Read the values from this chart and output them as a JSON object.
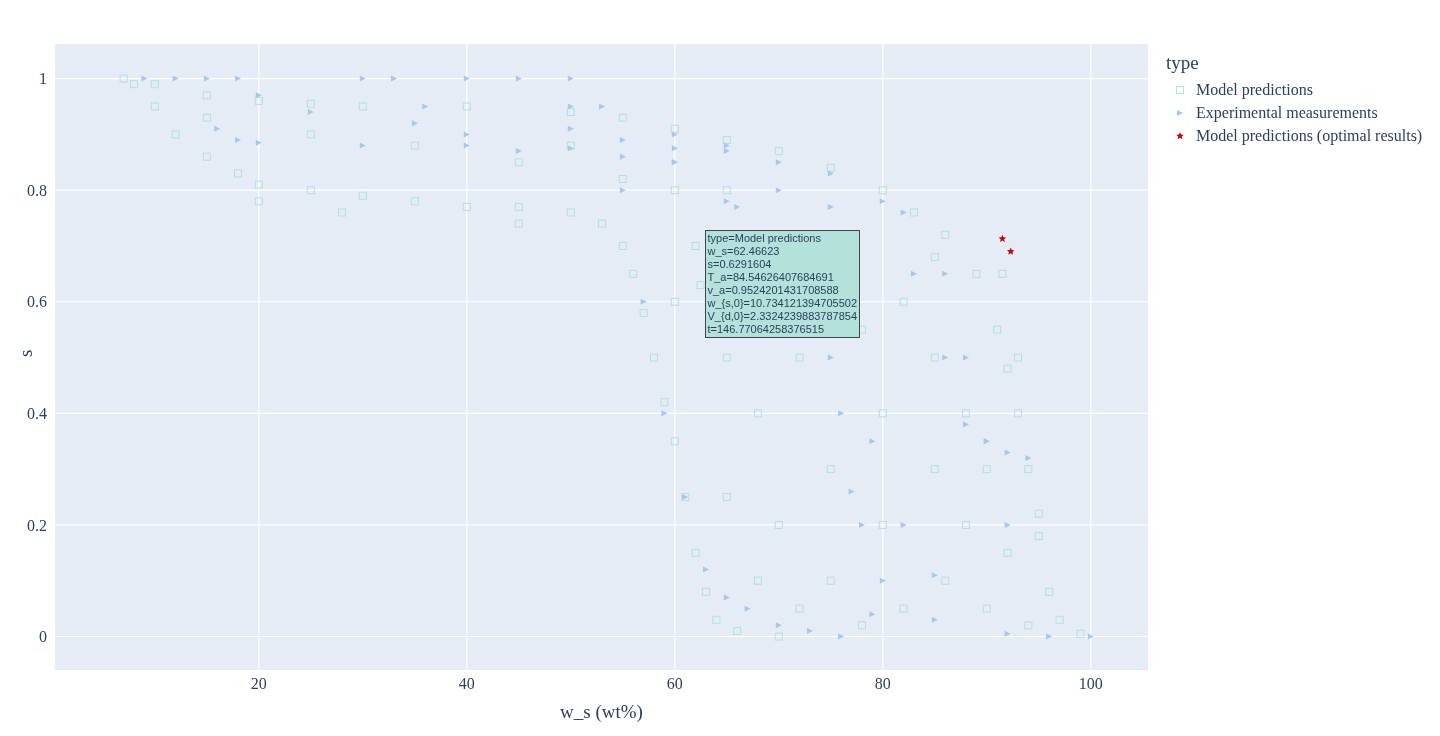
{
  "chart_data": {
    "type": "scatter",
    "xlabel": "w_s (wt%)",
    "ylabel": "s",
    "legend_title": "type",
    "xlim": [
      0.4,
      105.5
    ],
    "ylim": [
      -0.06,
      1.062
    ],
    "xticks": [
      20,
      40,
      60,
      80,
      100
    ],
    "yticks": [
      0,
      0.2,
      0.4,
      0.6,
      0.8,
      1
    ],
    "grid": true,
    "legend": "top right",
    "series": [
      {
        "name": "Model predictions",
        "color": "#b2e2da",
        "marker": "square",
        "x": [
          7,
          10,
          15,
          20,
          25,
          30,
          40,
          50,
          55,
          60,
          65,
          70,
          75,
          80,
          83,
          86,
          89,
          91,
          92,
          93,
          94,
          95,
          96,
          97,
          99,
          8,
          10,
          12,
          15,
          18,
          20,
          25,
          30,
          35,
          40,
          45,
          50,
          53,
          55,
          56,
          57,
          58,
          59,
          60,
          61,
          62,
          63,
          64,
          66,
          70,
          15,
          25,
          35,
          45,
          50,
          55,
          60,
          60,
          62,
          65,
          65,
          65,
          68,
          68,
          70,
          72,
          72,
          75,
          75,
          78,
          78,
          80,
          80,
          82,
          82,
          85,
          85,
          86,
          88,
          88,
          90,
          90,
          92,
          94,
          62.47,
          20,
          28,
          45,
          85,
          91.5,
          93,
          95
        ],
        "values": [
          1,
          0.99,
          0.97,
          0.96,
          0.955,
          0.95,
          0.95,
          0.94,
          0.93,
          0.91,
          0.89,
          0.87,
          0.84,
          0.8,
          0.76,
          0.72,
          0.65,
          0.55,
          0.48,
          0.4,
          0.3,
          0.18,
          0.08,
          0.03,
          0.005,
          0.99,
          0.95,
          0.9,
          0.86,
          0.83,
          0.81,
          0.8,
          0.79,
          0.78,
          0.77,
          0.77,
          0.76,
          0.74,
          0.7,
          0.65,
          0.58,
          0.5,
          0.42,
          0.35,
          0.25,
          0.15,
          0.08,
          0.03,
          0.01,
          0,
          0.93,
          0.9,
          0.88,
          0.85,
          0.88,
          0.82,
          0.8,
          0.6,
          0.7,
          0.5,
          0.8,
          0.25,
          0.1,
          0.4,
          0.2,
          0.05,
          0.5,
          0.3,
          0.1,
          0.55,
          0.02,
          0.2,
          0.4,
          0.6,
          0.05,
          0.3,
          0.5,
          0.1,
          0.2,
          0.4,
          0.05,
          0.3,
          0.15,
          0.02,
          0.63,
          0.78,
          0.76,
          0.74,
          0.68,
          0.65,
          0.5,
          0.22
        ]
      },
      {
        "name": "Experimental measurements",
        "color": "#a3c9ee",
        "marker": "triangle",
        "x": [
          9,
          12,
          15,
          16,
          18,
          20,
          30,
          40,
          50,
          60,
          65,
          70,
          75,
          80,
          83,
          86,
          88,
          90,
          92,
          94,
          18,
          20,
          25,
          35,
          50,
          60,
          65,
          70,
          76,
          77,
          78,
          79,
          33,
          36,
          40,
          45,
          55,
          60,
          65,
          75,
          79,
          82,
          85,
          45,
          50,
          55,
          60,
          66,
          75,
          82,
          86,
          88,
          90,
          92,
          30,
          40,
          50,
          53,
          55,
          57,
          59,
          61,
          63,
          65,
          67,
          70,
          73,
          76,
          80,
          85,
          92,
          96,
          100
        ],
        "values": [
          1,
          1,
          1,
          0.91,
          0.89,
          0.885,
          0.88,
          0.88,
          0.875,
          0.875,
          0.87,
          0.85,
          0.83,
          0.78,
          0.65,
          0.5,
          0.38,
          0.35,
          0.33,
          0.32,
          1,
          0.97,
          0.94,
          0.92,
          0.91,
          0.9,
          0.88,
          0.8,
          0.4,
          0.26,
          0.2,
          0.04,
          1,
          0.95,
          0.9,
          0.87,
          0.86,
          0.85,
          0.78,
          0.5,
          0.35,
          0.2,
          0.11,
          1,
          0.95,
          0.89,
          0.85,
          0.77,
          0.77,
          0.76,
          0.65,
          0.5,
          0.35,
          0.2,
          1,
          1,
          1,
          0.95,
          0.8,
          0.6,
          0.4,
          0.25,
          0.12,
          0.07,
          0.05,
          0.02,
          0.01,
          0,
          0.1,
          0.03,
          0.005,
          0,
          0
        ]
      },
      {
        "name": "Model predictions (optimal results)",
        "color": "#cc0000",
        "marker": "star",
        "x": [
          91.5,
          92.3
        ],
        "values": [
          0.713,
          0.69
        ]
      }
    ],
    "annotations": [
      {
        "text": "type=Model predictions\nw_s=62.46623\ns=0.6291604\nT_a=84.54626407684691\nv_a=0.9524201431708588\nw_{s,0}=10.734121394705502\nV_{d,0}=2.3324239883787854\nt=146.77064258376515",
        "x": 62.47,
        "y": 0.63
      }
    ]
  }
}
